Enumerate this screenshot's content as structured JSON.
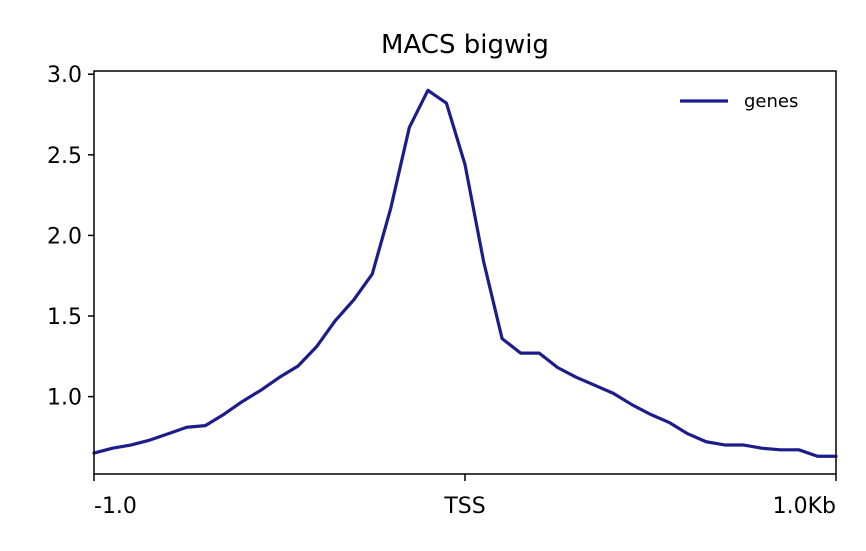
{
  "chart_data": {
    "type": "line",
    "title": "MACS bigwig",
    "xlabel": "",
    "ylabel": "",
    "xlim": [
      -1.0,
      1.0
    ],
    "ylim": [
      0.52,
      3.02
    ],
    "x_ticks": [
      {
        "value": -1.0,
        "label": "-1.0"
      },
      {
        "value": 0.0,
        "label": "TSS"
      },
      {
        "value": 1.0,
        "label": "1.0Kb"
      }
    ],
    "y_ticks": [
      {
        "value": 1.0,
        "label": "1.0"
      },
      {
        "value": 1.5,
        "label": "1.5"
      },
      {
        "value": 2.0,
        "label": "2.0"
      },
      {
        "value": 2.5,
        "label": "2.5"
      },
      {
        "value": 3.0,
        "label": "3.0"
      }
    ],
    "grid": false,
    "legend_position": "top-right",
    "series": [
      {
        "name": "genes",
        "color": "#1c1c8a",
        "x": [
          -1.0,
          -0.95,
          -0.9,
          -0.85,
          -0.8,
          -0.75,
          -0.7,
          -0.65,
          -0.6,
          -0.55,
          -0.5,
          -0.45,
          -0.4,
          -0.35,
          -0.3,
          -0.25,
          -0.2,
          -0.15,
          -0.1,
          -0.05,
          0.0,
          0.05,
          0.1,
          0.15,
          0.2,
          0.25,
          0.3,
          0.35,
          0.4,
          0.45,
          0.5,
          0.55,
          0.6,
          0.65,
          0.7,
          0.75,
          0.8,
          0.85,
          0.9,
          0.95,
          1.0
        ],
        "values": [
          0.65,
          0.68,
          0.7,
          0.73,
          0.77,
          0.81,
          0.82,
          0.89,
          0.97,
          1.04,
          1.12,
          1.19,
          1.31,
          1.47,
          1.6,
          1.76,
          2.17,
          2.67,
          2.9,
          2.82,
          2.44,
          1.84,
          1.36,
          1.27,
          1.27,
          1.18,
          1.12,
          1.07,
          1.02,
          0.95,
          0.89,
          0.84,
          0.77,
          0.72,
          0.7,
          0.7,
          0.68,
          0.67,
          0.67,
          0.63,
          0.63
        ]
      }
    ]
  }
}
